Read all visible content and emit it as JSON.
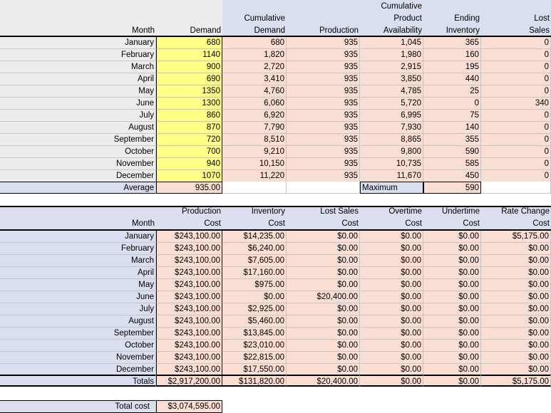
{
  "top_table": {
    "headers": {
      "month": "Month",
      "demand": "Demand",
      "cum_demand": [
        "Cumulative",
        "Demand"
      ],
      "production": "Production",
      "cum_avail": [
        "Cumulative",
        "Product",
        "Availability"
      ],
      "ending_inv": [
        "Ending",
        "Inventory"
      ],
      "lost_sales": [
        "Lost",
        "Sales"
      ]
    },
    "rows": [
      [
        "January",
        "680",
        "680",
        "935",
        "1,045",
        "365",
        "0"
      ],
      [
        "February",
        "1140",
        "1,820",
        "935",
        "1,980",
        "160",
        "0"
      ],
      [
        "March",
        "900",
        "2,720",
        "935",
        "2,915",
        "195",
        "0"
      ],
      [
        "April",
        "690",
        "3,410",
        "935",
        "3,850",
        "440",
        "0"
      ],
      [
        "May",
        "1350",
        "4,760",
        "935",
        "4,785",
        "25",
        "0"
      ],
      [
        "June",
        "1300",
        "6,060",
        "935",
        "5,720",
        "0",
        "340"
      ],
      [
        "July",
        "860",
        "6,920",
        "935",
        "6,995",
        "75",
        "0"
      ],
      [
        "August",
        "870",
        "7,790",
        "935",
        "7,930",
        "140",
        "0"
      ],
      [
        "September",
        "720",
        "8,510",
        "935",
        "8,865",
        "355",
        "0"
      ],
      [
        "October",
        "700",
        "9,210",
        "935",
        "9,800",
        "590",
        "0"
      ],
      [
        "November",
        "940",
        "10,150",
        "935",
        "10,735",
        "585",
        "0"
      ],
      [
        "December",
        "1070",
        "11,220",
        "935",
        "11,670",
        "450",
        "0"
      ]
    ],
    "average_label": "Average",
    "average_value": "935.00",
    "maximum_label": "Maximum",
    "maximum_value": "590"
  },
  "bottom_table": {
    "headers": {
      "month": "Month",
      "production_cost": [
        "Production",
        "Cost"
      ],
      "inventory_cost": [
        "Inventory",
        "Cost"
      ],
      "lost_sales_cost": [
        "Lost Sales",
        "Cost"
      ],
      "overtime_cost": [
        "Overtime",
        "Cost"
      ],
      "undertime_cost": [
        "Undertime",
        "Cost"
      ],
      "rate_change_cost": [
        "Rate Change",
        "Cost"
      ]
    },
    "rows": [
      [
        "January",
        "$243,100.00",
        "$14,235.00",
        "$0.00",
        "$0.00",
        "$0.00",
        "$5,175.00"
      ],
      [
        "February",
        "$243,100.00",
        "$6,240.00",
        "$0.00",
        "$0.00",
        "$0.00",
        "$0.00"
      ],
      [
        "March",
        "$243,100.00",
        "$7,605.00",
        "$0.00",
        "$0.00",
        "$0.00",
        "$0.00"
      ],
      [
        "April",
        "$243,100.00",
        "$17,160.00",
        "$0.00",
        "$0.00",
        "$0.00",
        "$0.00"
      ],
      [
        "May",
        "$243,100.00",
        "$975.00",
        "$0.00",
        "$0.00",
        "$0.00",
        "$0.00"
      ],
      [
        "June",
        "$243,100.00",
        "$0.00",
        "$20,400.00",
        "$0.00",
        "$0.00",
        "$0.00"
      ],
      [
        "July",
        "$243,100.00",
        "$2,925.00",
        "$0.00",
        "$0.00",
        "$0.00",
        "$0.00"
      ],
      [
        "August",
        "$243,100.00",
        "$5,460.00",
        "$0.00",
        "$0.00",
        "$0.00",
        "$0.00"
      ],
      [
        "September",
        "$243,100.00",
        "$13,845.00",
        "$0.00",
        "$0.00",
        "$0.00",
        "$0.00"
      ],
      [
        "October",
        "$243,100.00",
        "$23,010.00",
        "$0.00",
        "$0.00",
        "$0.00",
        "$0.00"
      ],
      [
        "November",
        "$243,100.00",
        "$22,815.00",
        "$0.00",
        "$0.00",
        "$0.00",
        "$0.00"
      ],
      [
        "December",
        "$243,100.00",
        "$17,550.00",
        "$0.00",
        "$0.00",
        "$0.00",
        "$0.00"
      ]
    ],
    "totals": [
      "Totals",
      "$2,917,200.00",
      "$131,820.00",
      "$20,400.00",
      "$0.00",
      "$0.00",
      "$5,175.00"
    ],
    "total_cost_label": "Total cost",
    "total_cost_value": "$3,074,595.00"
  }
}
